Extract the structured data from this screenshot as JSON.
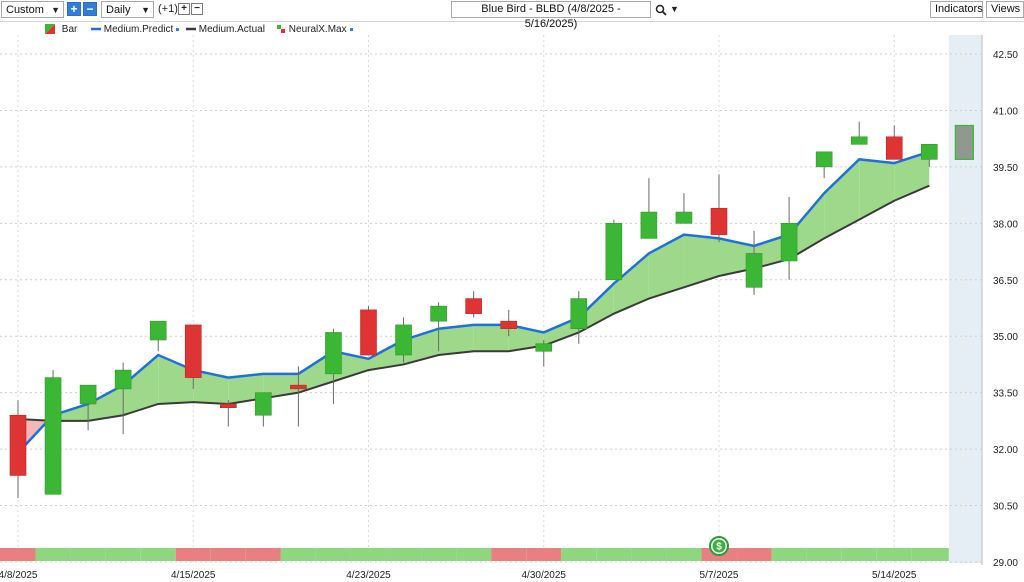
{
  "toolbar": {
    "range_select": "Custom",
    "interval_select": "Daily",
    "offset_label": "(+1)",
    "symbol_title": "Blue Bird - BLBD (4/8/2025 - 5/16/2025)",
    "indicators_label": "Indicators",
    "views_label": "Views"
  },
  "legend": {
    "bar": "Bar",
    "predicted": "Medium.Predict",
    "actual": "Medium.Actual",
    "neuralx": "NeuralX.Max"
  },
  "colors": {
    "up": "#3cb635",
    "down": "#de3434",
    "predicted_line": "#1f6fe0",
    "actual_line": "#3a3a3a",
    "fill_bull": "#9ed98b",
    "fill_bear": "#f2b8b8",
    "strip_bull": "#8fd77f",
    "strip_bear": "#e88080",
    "forecast_bg": "#e6eef5"
  },
  "chart_data": {
    "type": "candlestick",
    "yaxis_ticks": [
      "42.50",
      "41.00",
      "39.50",
      "38.00",
      "36.50",
      "35.00",
      "33.50",
      "32.00",
      "30.50",
      "29.00"
    ],
    "xaxis_ticks": [
      "4/8/2025",
      "4/15/2025",
      "4/23/2025",
      "4/30/2025",
      "5/7/2025",
      "5/14/2025"
    ],
    "ylim": [
      29.0,
      43.0
    ],
    "candles": [
      {
        "o": 32.9,
        "h": 33.3,
        "l": 30.7,
        "c": 31.3
      },
      {
        "o": 30.8,
        "h": 34.1,
        "l": 30.8,
        "c": 33.9
      },
      {
        "o": 33.2,
        "h": 33.7,
        "l": 32.5,
        "c": 33.7
      },
      {
        "o": 33.6,
        "h": 34.3,
        "l": 32.4,
        "c": 34.1
      },
      {
        "o": 34.9,
        "h": 35.4,
        "l": 34.6,
        "c": 35.4
      },
      {
        "o": 35.3,
        "h": 35.3,
        "l": 33.6,
        "c": 33.9
      },
      {
        "o": 33.2,
        "h": 33.3,
        "l": 32.6,
        "c": 33.1
      },
      {
        "o": 32.9,
        "h": 33.5,
        "l": 32.6,
        "c": 33.5
      },
      {
        "o": 33.7,
        "h": 34.2,
        "l": 32.6,
        "c": 33.6
      },
      {
        "o": 34.0,
        "h": 35.2,
        "l": 33.2,
        "c": 35.1
      },
      {
        "o": 35.7,
        "h": 35.8,
        "l": 34.5,
        "c": 34.5
      },
      {
        "o": 34.5,
        "h": 35.5,
        "l": 34.3,
        "c": 35.3
      },
      {
        "o": 35.4,
        "h": 35.9,
        "l": 34.6,
        "c": 35.8
      },
      {
        "o": 36.0,
        "h": 36.2,
        "l": 35.5,
        "c": 35.6
      },
      {
        "o": 35.4,
        "h": 35.7,
        "l": 35.0,
        "c": 35.2
      },
      {
        "o": 34.6,
        "h": 34.9,
        "l": 34.2,
        "c": 34.8
      },
      {
        "o": 35.2,
        "h": 36.2,
        "l": 34.8,
        "c": 36.0
      },
      {
        "o": 36.5,
        "h": 38.1,
        "l": 36.5,
        "c": 38.0
      },
      {
        "o": 37.6,
        "h": 39.2,
        "l": 37.6,
        "c": 38.3
      },
      {
        "o": 38.0,
        "h": 38.8,
        "l": 38.0,
        "c": 38.3
      },
      {
        "o": 38.4,
        "h": 39.3,
        "l": 37.5,
        "c": 37.7
      },
      {
        "o": 36.3,
        "h": 37.8,
        "l": 36.1,
        "c": 37.2
      },
      {
        "o": 37.0,
        "h": 38.7,
        "l": 36.5,
        "c": 38.0
      },
      {
        "o": 39.5,
        "h": 39.9,
        "l": 39.2,
        "c": 39.9
      },
      {
        "o": 40.1,
        "h": 40.7,
        "l": 40.1,
        "c": 40.3
      },
      {
        "o": 40.3,
        "h": 40.6,
        "l": 39.7,
        "c": 39.7
      },
      {
        "o": 39.7,
        "h": 40.1,
        "l": 39.5,
        "c": 40.1
      }
    ],
    "forecast_bar": {
      "hi": 40.6,
      "lo": 39.7
    },
    "predicted": [
      31.9,
      32.9,
      33.2,
      33.7,
      34.5,
      34.1,
      33.9,
      34.0,
      34.0,
      34.6,
      34.4,
      34.9,
      35.2,
      35.3,
      35.3,
      35.1,
      35.5,
      36.4,
      37.2,
      37.7,
      37.6,
      37.4,
      37.7,
      38.8,
      39.7,
      39.6,
      39.9
    ],
    "actual": [
      32.8,
      32.75,
      32.75,
      32.9,
      33.2,
      33.25,
      33.2,
      33.35,
      33.5,
      33.8,
      34.1,
      34.25,
      34.5,
      34.6,
      34.6,
      34.75,
      35.1,
      35.6,
      36.0,
      36.3,
      36.6,
      36.8,
      37.05,
      37.6,
      38.1,
      38.6,
      39.0
    ],
    "signal_strip": [
      "bear",
      "bull",
      "bull",
      "bull",
      "bull",
      "bear",
      "bear",
      "bear",
      "bull",
      "bull",
      "bull",
      "bull",
      "bull",
      "bull",
      "bear",
      "bear",
      "bull",
      "bull",
      "bull",
      "bull",
      "bear",
      "bear",
      "bull",
      "bull",
      "bull",
      "bull",
      "bull"
    ],
    "dividend_marker_index": 20,
    "dividend_marker_label": "$"
  }
}
